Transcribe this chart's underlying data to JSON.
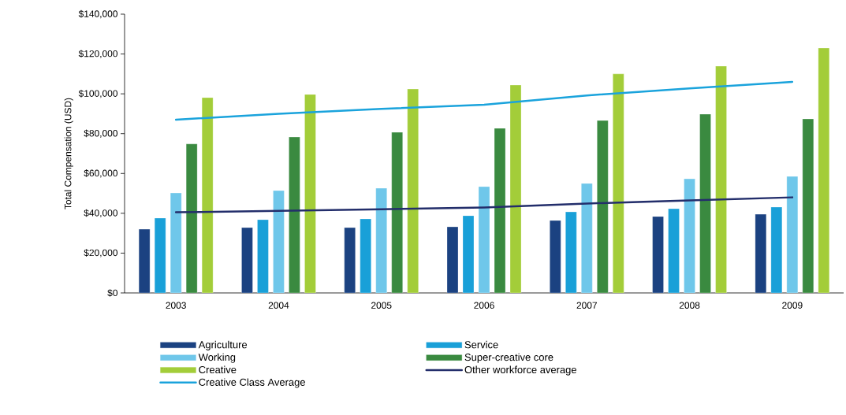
{
  "chart_data": {
    "type": "bar",
    "ylabel": "Total Compensation (USD)",
    "categories": [
      "2003",
      "2004",
      "2005",
      "2006",
      "2007",
      "2008",
      "2009"
    ],
    "series": [
      {
        "name": "Agriculture",
        "color": "#1b4281",
        "values": [
          32000,
          32800,
          32800,
          33200,
          36400,
          38400,
          39500
        ]
      },
      {
        "name": "Service",
        "color": "#19a0d8",
        "values": [
          37600,
          36800,
          37200,
          38800,
          40700,
          42300,
          43100
        ]
      },
      {
        "name": "Working",
        "color": "#6fc7ea",
        "values": [
          50200,
          51400,
          52600,
          53400,
          55000,
          57300,
          58500
        ]
      },
      {
        "name": "Super-creative core",
        "color": "#3a8a40",
        "values": [
          74800,
          78300,
          80700,
          82700,
          86600,
          89800,
          87400
        ]
      },
      {
        "name": "Creative",
        "color": "#a3cd39",
        "values": [
          98100,
          99700,
          102400,
          104400,
          110000,
          113900,
          123000
        ]
      },
      {
        "name": "Other workforce average",
        "type": "line",
        "color": "#232e6b",
        "values": [
          40500,
          41200,
          42000,
          42900,
          44900,
          46500,
          48000
        ]
      },
      {
        "name": "Creative Class Average",
        "type": "line",
        "color": "#1aa3dc",
        "values": [
          87000,
          90000,
          92400,
          94500,
          99200,
          102700,
          106000
        ]
      }
    ],
    "ylim": [
      0,
      140000
    ],
    "yticks": [
      {
        "value": 0,
        "label": "$0"
      },
      {
        "value": 20000,
        "label": "$20,000"
      },
      {
        "value": 40000,
        "label": "$40,000"
      },
      {
        "value": 60000,
        "label": "$60,000"
      },
      {
        "value": 80000,
        "label": "$80,000"
      },
      {
        "value": 100000,
        "label": "$100,000"
      },
      {
        "value": 120000,
        "label": "$120,000"
      },
      {
        "value": 140000,
        "label": "$140,000"
      }
    ],
    "legend": "bottom"
  }
}
